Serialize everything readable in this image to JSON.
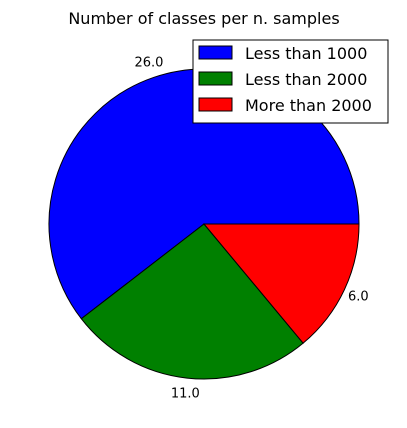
{
  "chart_data": {
    "type": "pie",
    "title": "Number of classes per n. samples",
    "slices": [
      {
        "name": "Less than 1000",
        "value": 26.0,
        "label": "26.0",
        "color": "#0000ff"
      },
      {
        "name": "Less than 2000",
        "value": 11.0,
        "label": "11.0",
        "color": "#008000"
      },
      {
        "name": "More than 2000",
        "value": 6.0,
        "label": "6.0",
        "color": "#ff0000"
      }
    ],
    "legend_position": "top-right",
    "start_angle_deg": 0,
    "direction": "counterclockwise"
  }
}
